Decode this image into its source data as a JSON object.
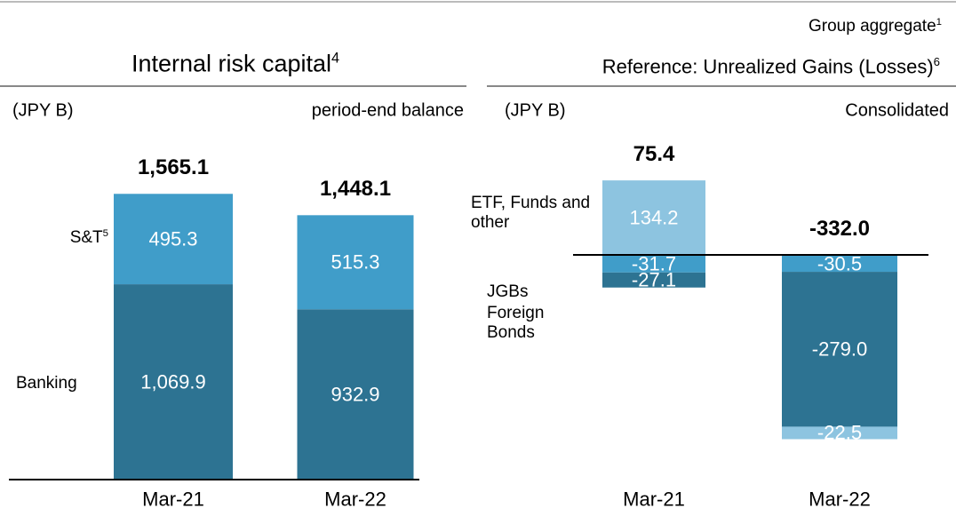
{
  "chart_data": [
    {
      "type": "bar",
      "stacked": true,
      "title": "Internal risk capital",
      "title_note": "4",
      "unit_label": "(JPY B)",
      "subtitle": "period-end balance",
      "categories": [
        "Mar-21",
        "Mar-22"
      ],
      "ylim": [
        0,
        1800
      ],
      "series": [
        {
          "name": "Banking",
          "color": "#2d7392",
          "values": [
            1069.9,
            932.9
          ],
          "value_labels": [
            "1,069.9",
            "932.9"
          ]
        },
        {
          "name": "S&T",
          "note": "5",
          "color": "#409dc9",
          "values": [
            495.3,
            515.3
          ]
        }
      ],
      "totals": [
        1565.1,
        1448.1
      ],
      "total_labels": [
        "1,565.1",
        "1,448.1"
      ]
    },
    {
      "type": "bar",
      "stacked": true,
      "group_label": "Group aggregate",
      "group_note": "1",
      "title": "Reference: Unrealized Gains (Losses)",
      "title_note": "6",
      "unit_label": "(JPY B)",
      "subtitle": "Consolidated",
      "categories": [
        "Mar-21",
        "Mar-22"
      ],
      "ylim": [
        -400,
        200
      ],
      "series": [
        {
          "name": "JGBs",
          "color": "#409dc9",
          "values": [
            -31.7,
            -30.5
          ]
        },
        {
          "name": "Foreign Bonds",
          "color": "#2d7392",
          "values": [
            -27.1,
            -279.0
          ],
          "value_labels": [
            "-27.1",
            "-279.0"
          ]
        },
        {
          "name": "ETF, Funds and other",
          "color": "#8dc4e0",
          "values": [
            134.2,
            -22.5
          ]
        }
      ],
      "totals": [
        75.4,
        -332.0
      ],
      "total_labels": [
        "75.4",
        "-332.0"
      ]
    }
  ]
}
